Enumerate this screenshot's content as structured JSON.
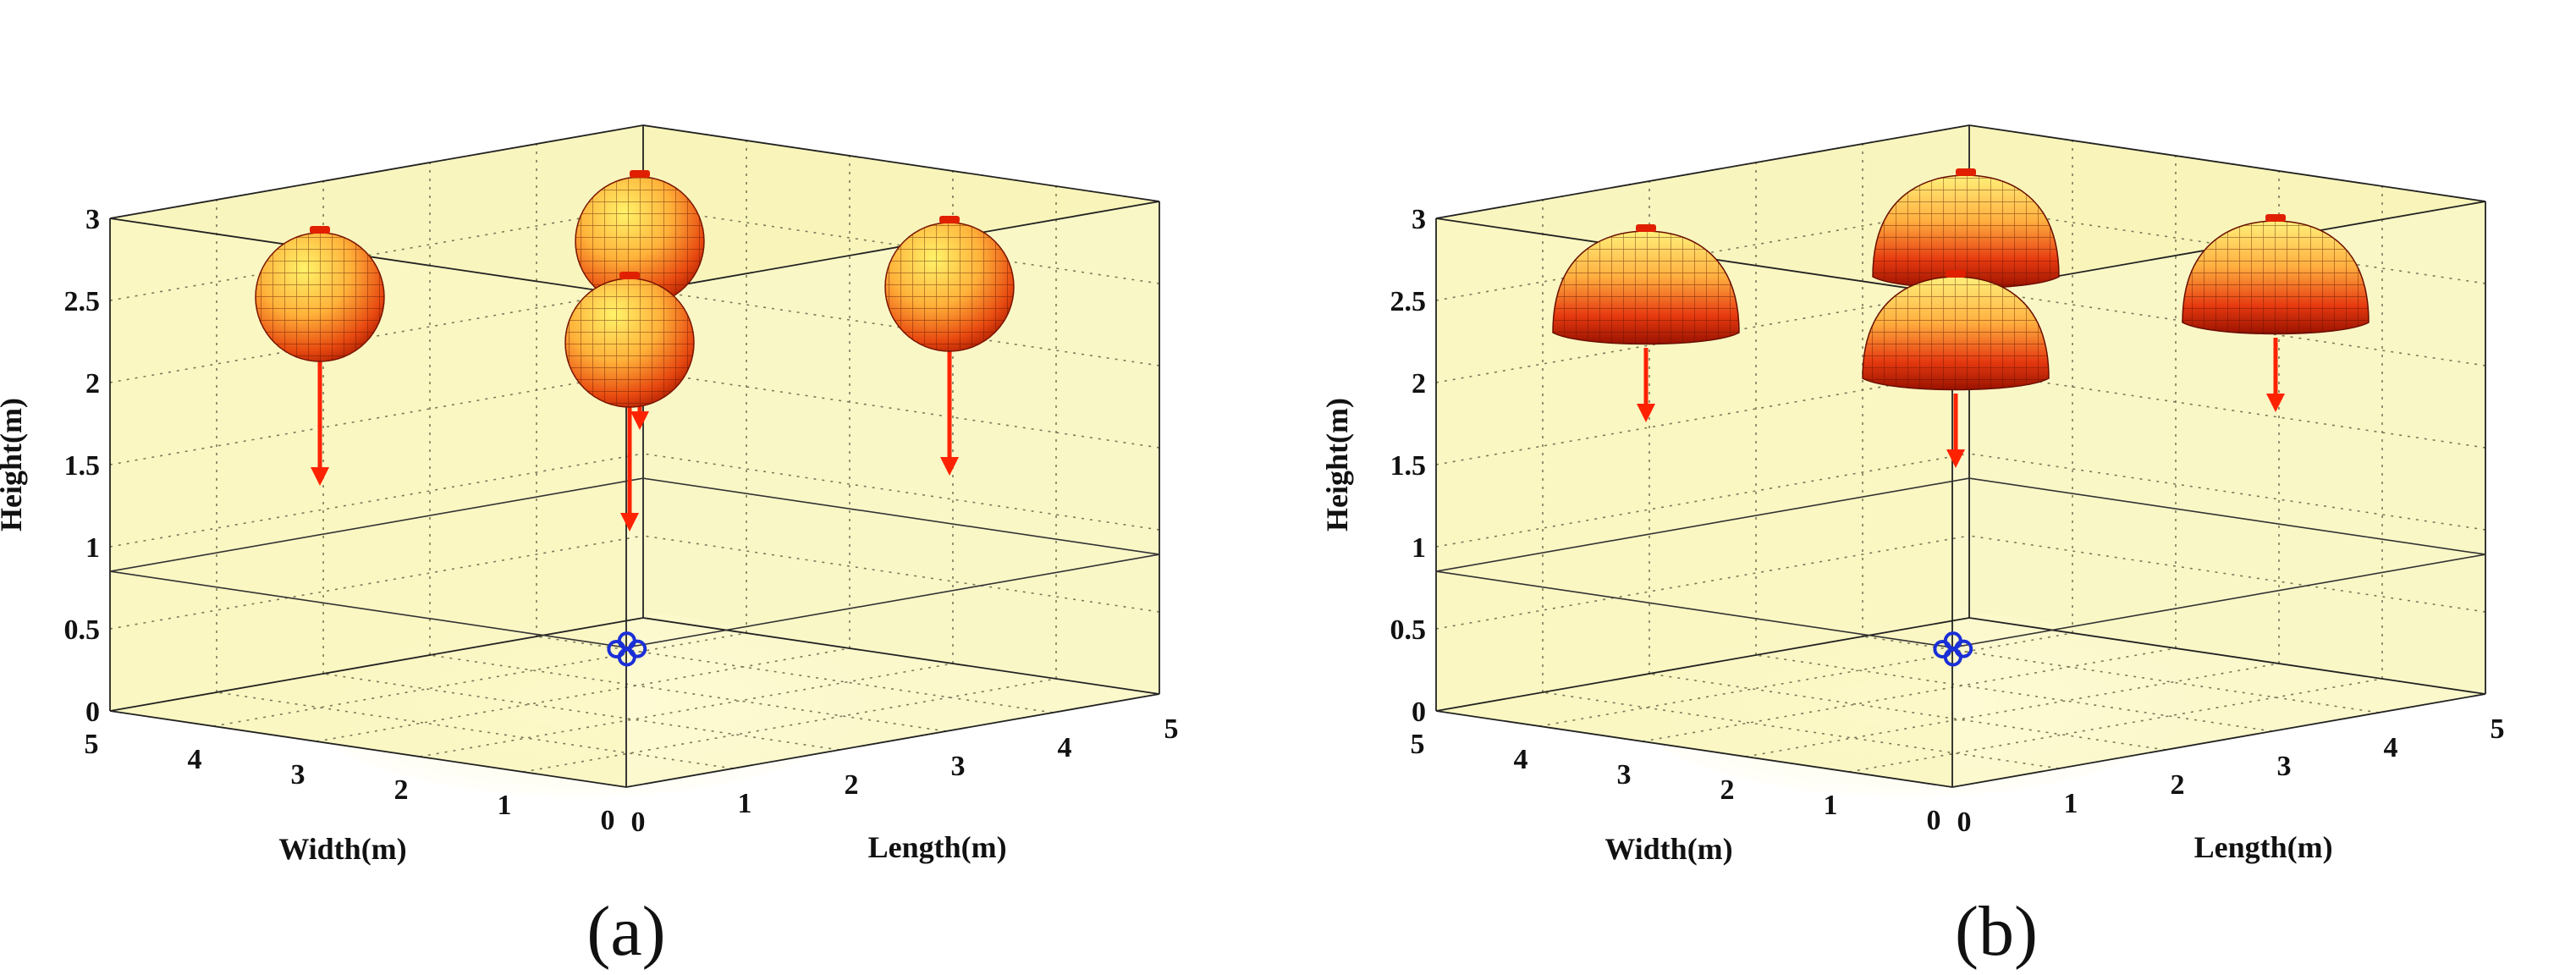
{
  "chart_data": [
    {
      "type": "3d-scatter",
      "panel_label": "(a)",
      "xlabel": "Length(m)",
      "ylabel": "Width(m)",
      "zlabel": "Height(m)",
      "xlim": [
        0,
        5
      ],
      "ylim": [
        0,
        5
      ],
      "zlim": [
        0,
        3
      ],
      "xticks": [
        "0",
        "1",
        "2",
        "3",
        "4",
        "5"
      ],
      "yticks": [
        "0",
        "1",
        "2",
        "3",
        "4",
        "5"
      ],
      "zticks": [
        "0",
        "0.5",
        "1",
        "1.5",
        "2",
        "2.5",
        "3"
      ],
      "grid": true,
      "pattern_shape": "sphere",
      "transmitters": [
        {
          "x": 1.0,
          "y": 4.0,
          "z": 2.5
        },
        {
          "x": 1.0,
          "y": 1.0,
          "z": 2.5
        },
        {
          "x": 4.0,
          "y": 4.0,
          "z": 2.5
        },
        {
          "x": 4.0,
          "y": 1.0,
          "z": 2.5
        }
      ],
      "receivers": [
        {
          "x": 0.15,
          "y": 0.25,
          "z": 0.8
        },
        {
          "x": 0.25,
          "y": 0.15,
          "z": 0.8
        },
        {
          "x": 0.2,
          "y": 0.2,
          "z": 0.85
        },
        {
          "x": 0.2,
          "y": 0.2,
          "z": 0.75
        }
      ],
      "colors": {
        "room": "#f7f2a2",
        "pattern_light": "#ffe45a",
        "pattern_dark": "#b61a00",
        "arrow": "#ff2200",
        "receiver": "#1a2fd6"
      }
    },
    {
      "type": "3d-scatter",
      "panel_label": "(b)",
      "xlabel": "Length(m)",
      "ylabel": "Width(m)",
      "zlabel": "Height(m)",
      "xlim": [
        0,
        5
      ],
      "ylim": [
        0,
        5
      ],
      "zlim": [
        0,
        3
      ],
      "xticks": [
        "0",
        "1",
        "2",
        "3",
        "4",
        "5"
      ],
      "yticks": [
        "0",
        "1",
        "2",
        "3",
        "4",
        "5"
      ],
      "zticks": [
        "0",
        "0.5",
        "1",
        "1.5",
        "2",
        "2.5",
        "3"
      ],
      "grid": true,
      "pattern_shape": "dome",
      "transmitters": [
        {
          "x": 1.0,
          "y": 4.0,
          "z": 2.5
        },
        {
          "x": 1.0,
          "y": 1.0,
          "z": 2.5
        },
        {
          "x": 4.0,
          "y": 4.0,
          "z": 2.5
        },
        {
          "x": 4.0,
          "y": 1.0,
          "z": 2.5
        }
      ],
      "receivers": [
        {
          "x": 0.15,
          "y": 0.25,
          "z": 0.8
        },
        {
          "x": 0.25,
          "y": 0.15,
          "z": 0.8
        },
        {
          "x": 0.2,
          "y": 0.2,
          "z": 0.85
        },
        {
          "x": 0.2,
          "y": 0.2,
          "z": 0.75
        }
      ],
      "colors": {
        "room": "#f7f2a2",
        "pattern_light": "#ffe45a",
        "pattern_dark": "#b61a00",
        "arrow": "#ff2200",
        "receiver": "#1a2fd6"
      }
    }
  ]
}
